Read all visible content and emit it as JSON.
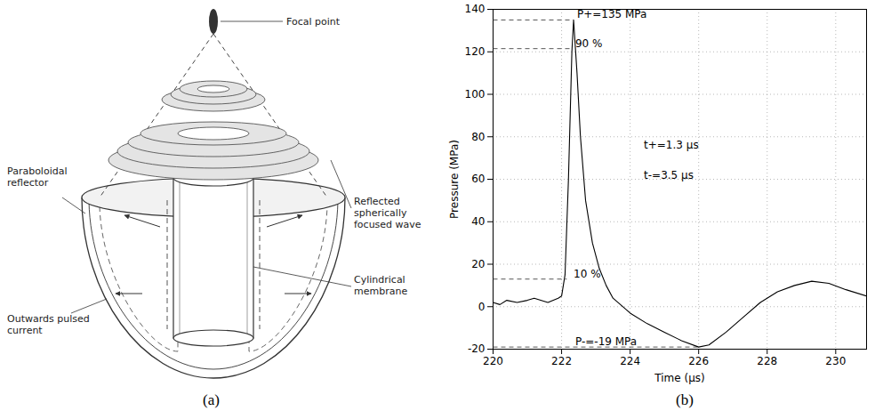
{
  "diagram": {
    "caption": "(a)",
    "labels": {
      "focal_point": "Focal point",
      "reflector": "Paraboloidal reflector",
      "wave": "Reflected spherically focused wave",
      "membrane": "Cylindrical membrane",
      "current": "Outwards pulsed current"
    }
  },
  "chart_data": {
    "type": "line",
    "caption": "(b)",
    "xlabel": "Time (µs)",
    "ylabel": "Pressure (MPa)",
    "x": [
      220,
      220.2,
      220.4,
      220.7,
      221,
      221.2,
      221.6,
      221.9,
      222,
      222.1,
      222.2,
      222.3,
      222.35,
      222.45,
      222.55,
      222.7,
      222.9,
      223.1,
      223.3,
      223.5,
      224,
      224.5,
      225,
      225.5,
      226,
      226.3,
      226.8,
      227.3,
      227.8,
      228.3,
      228.8,
      229.3,
      229.8,
      230.3,
      230.9
    ],
    "values": [
      2,
      1,
      3,
      2,
      3,
      4,
      2,
      4,
      5,
      15,
      60,
      120,
      135,
      110,
      80,
      50,
      30,
      18,
      10,
      4,
      -3,
      -8,
      -12,
      -16,
      -19,
      -18,
      -12,
      -5,
      2,
      7,
      10,
      12,
      11,
      8,
      5
    ],
    "color": "#000000",
    "xlim": [
      220,
      230.9
    ],
    "xticks": [
      220,
      222,
      224,
      226,
      228,
      230
    ],
    "ylim": [
      -20,
      140
    ],
    "yticks": [
      -20,
      0,
      20,
      40,
      60,
      80,
      100,
      120,
      140
    ],
    "grid": true,
    "reference_lines": [
      {
        "y": 135,
        "x": [
          220,
          222.35
        ],
        "label": "P+=135 MPa",
        "label_x": 222.45
      },
      {
        "y": 121.5,
        "x": [
          220,
          222.3
        ],
        "label": "90 %",
        "label_x": 222.4
      },
      {
        "y": 13,
        "x": [
          220,
          222.15
        ],
        "label": "10 %",
        "label_x": 222.35
      },
      {
        "y": -19,
        "x": [
          220,
          226
        ],
        "label": "P-=-19 MPa",
        "label_x": 222.4
      }
    ],
    "annotations": [
      {
        "text": "t+=1.3 µs",
        "x": 224.4,
        "y": 76
      },
      {
        "text": "t-=3.5 µs",
        "x": 224.4,
        "y": 62
      }
    ]
  }
}
